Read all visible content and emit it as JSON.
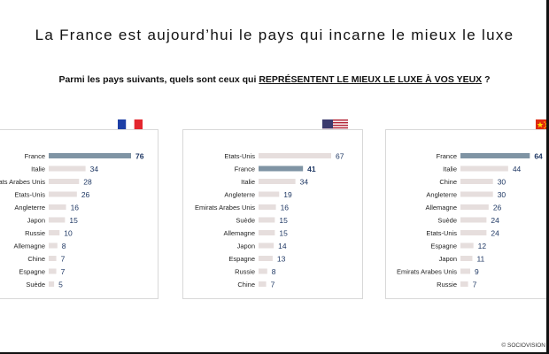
{
  "header": {
    "title": "La France est aujourd’hui le pays qui incarne le mieux le luxe",
    "question_prefix": "Parmi les pays suivants, quels sont ceux qui ",
    "question_highlight": "REPRÉSENTENT LE MIEUX LE LUXE À VOS YEUX",
    "question_suffix": " ?"
  },
  "footer": {
    "source": "© SOCIOVISION"
  },
  "colors": {
    "bar_gray": "#e6dedd",
    "bar_highlight": "#7f94a4",
    "value_color": "#1f3864",
    "panel_border": "#d8d8d8"
  },
  "flags": [
    "france-flag",
    "usa-flag",
    "china-flag"
  ],
  "chart_data": [
    {
      "type": "bar",
      "orientation": "horizontal",
      "categories": [
        "France",
        "Italie",
        "Emirats Arabes Unis",
        "Etats-Unis",
        "Angleterre",
        "Japon",
        "Russie",
        "Allemagne",
        "Chine",
        "Espagne",
        "Suède"
      ],
      "values": [
        76,
        34,
        28,
        26,
        16,
        15,
        10,
        8,
        7,
        7,
        5
      ],
      "highlight": "France",
      "xlim": [
        0,
        76
      ]
    },
    {
      "type": "bar",
      "orientation": "horizontal",
      "categories": [
        "Etats-Unis",
        "France",
        "Italie",
        "Angleterre",
        "Emirats Arabes Unis",
        "Suède",
        "Allemagne",
        "Japon",
        "Espagne",
        "Russie",
        "Chine"
      ],
      "values": [
        67,
        41,
        34,
        19,
        16,
        15,
        15,
        14,
        13,
        8,
        7
      ],
      "highlight": "France",
      "xlim": [
        0,
        76
      ]
    },
    {
      "type": "bar",
      "orientation": "horizontal",
      "categories": [
        "France",
        "Italie",
        "Chine",
        "Angleterre",
        "Allemagne",
        "Suède",
        "Etats-Unis",
        "Espagne",
        "Japon",
        "Emirats Arabes Unis",
        "Russie"
      ],
      "values": [
        64,
        44,
        30,
        30,
        26,
        24,
        24,
        12,
        11,
        9,
        7
      ],
      "highlight": "France",
      "xlim": [
        0,
        76
      ]
    }
  ]
}
